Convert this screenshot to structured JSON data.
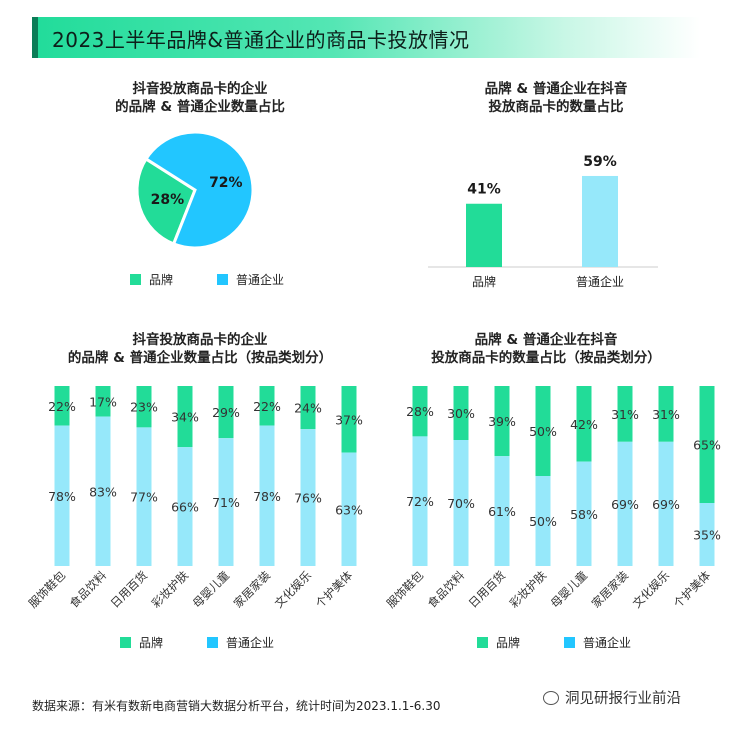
{
  "header": {
    "title": "2023上半年品牌&普通企业的商品卡投放情况"
  },
  "colors": {
    "brand": "#22dc98",
    "normal_pie": "#22c6ff",
    "normal_bar": "#96e8fa",
    "axis": "#cccccc"
  },
  "charts": {
    "pie": {
      "title_line1": "抖音投放商品卡的企业",
      "title_line2": "的品牌 & 普通企业数量占比"
    },
    "bar": {
      "title_line1": "品牌 & 普通企业在抖音",
      "title_line2": "投放商品卡的数量占比"
    },
    "stack_left": {
      "title_line1": "抖音投放商品卡的企业",
      "title_line2": "的品牌 & 普通企业数量占比（按品类划分）"
    },
    "stack_right": {
      "title_line1": "品牌 & 普通企业在抖音",
      "title_line2": "投放商品卡的数量占比（按品类划分）"
    }
  },
  "legend": {
    "brand": "品牌",
    "normal": "普通企业"
  },
  "chart_data": [
    {
      "type": "pie",
      "title": "抖音投放商品卡的企业的品牌 & 普通企业数量占比",
      "categories": [
        "品牌",
        "普通企业"
      ],
      "values": [
        28,
        72
      ],
      "labels": [
        "28%",
        "72%"
      ],
      "legend_placement": "bottom"
    },
    {
      "type": "bar",
      "title": "品牌 & 普通企业在抖音投放商品卡的数量占比",
      "categories": [
        "品牌",
        "普通企业"
      ],
      "values": [
        41,
        59
      ],
      "labels": [
        "41%",
        "59%"
      ],
      "ylim": [
        0,
        70
      ],
      "grid": false
    },
    {
      "type": "bar",
      "stacked": true,
      "title": "抖音投放商品卡的企业的品牌 & 普通企业数量占比（按品类划分）",
      "categories": [
        "服饰鞋包",
        "食品饮料",
        "日用百货",
        "彩妆护肤",
        "母婴儿童",
        "家居家装",
        "文化娱乐",
        "个护美体"
      ],
      "series": [
        {
          "name": "品牌",
          "values": [
            22,
            17,
            23,
            34,
            29,
            22,
            24,
            37
          ]
        },
        {
          "name": "普通企业",
          "values": [
            78,
            83,
            77,
            66,
            71,
            78,
            76,
            63
          ]
        }
      ],
      "ylim": [
        0,
        100
      ],
      "legend_placement": "bottom"
    },
    {
      "type": "bar",
      "stacked": true,
      "title": "品牌 & 普通企业在抖音投放商品卡的数量占比（按品类划分）",
      "categories": [
        "服饰鞋包",
        "食品饮料",
        "日用百货",
        "彩妆护肤",
        "母婴儿童",
        "家居家装",
        "文化娱乐",
        "个护美体"
      ],
      "series": [
        {
          "name": "品牌",
          "values": [
            28,
            30,
            39,
            50,
            42,
            31,
            31,
            65
          ]
        },
        {
          "name": "普通企业",
          "values": [
            72,
            70,
            61,
            50,
            58,
            69,
            69,
            35
          ]
        }
      ],
      "ylim": [
        0,
        100
      ],
      "legend_placement": "bottom"
    }
  ],
  "footer": {
    "source": "数据来源：有米有数新电商营销大数据分析平台，统计时间为2023.1.1-6.30",
    "watermark": "洞见研报行业前沿"
  }
}
